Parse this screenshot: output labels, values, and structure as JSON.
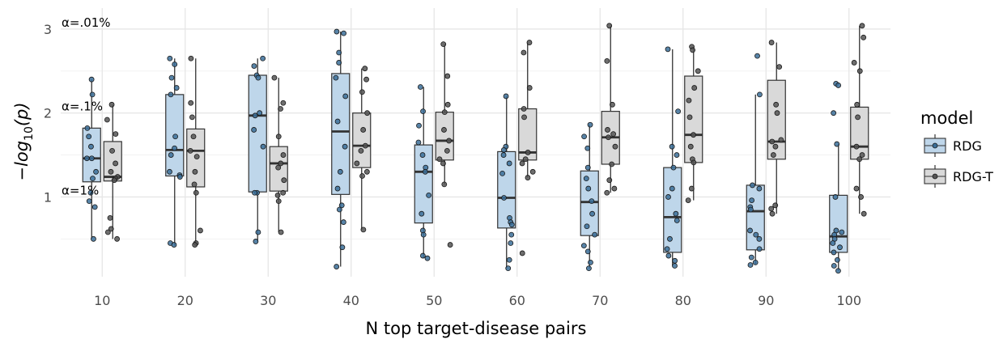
{
  "chart_data": {
    "type": "boxplot",
    "xlabel": "N top target-disease pairs",
    "ylabel_main": "−log",
    "ylabel_sub": "10",
    "ylabel_tail": "(p)",
    "categories": [
      "10",
      "20",
      "30",
      "40",
      "50",
      "60",
      "70",
      "80",
      "90",
      "100"
    ],
    "yticks": [
      1,
      2,
      3
    ],
    "ylim": [
      0.05,
      3.25
    ],
    "grid": true,
    "annotations": [
      {
        "text": "α=.01%",
        "y": 3.0
      },
      {
        "text": "α=.1%",
        "y": 2.0
      },
      {
        "text": "α=1%",
        "y": 1.0
      }
    ],
    "legend": {
      "title": "model",
      "position": "right"
    },
    "series": [
      {
        "name": "RDG",
        "color": "#bed6ea",
        "point_color": "#3b6f99",
        "boxes": [
          {
            "q1": 1.18,
            "median": 1.46,
            "q3": 1.82,
            "whislo": 0.5,
            "whishi": 2.4
          },
          {
            "q1": 1.25,
            "median": 1.56,
            "q3": 2.22,
            "whislo": 0.42,
            "whishi": 2.65
          },
          {
            "q1": 1.06,
            "median": 1.97,
            "q3": 2.45,
            "whislo": 0.47,
            "whishi": 2.65
          },
          {
            "q1": 1.03,
            "median": 1.78,
            "q3": 2.47,
            "whislo": 0.17,
            "whishi": 2.97
          },
          {
            "q1": 0.69,
            "median": 1.3,
            "q3": 1.62,
            "whislo": 0.27,
            "whishi": 2.31
          },
          {
            "q1": 0.63,
            "median": 0.99,
            "q3": 1.54,
            "whislo": 0.15,
            "whishi": 2.2
          },
          {
            "q1": 0.54,
            "median": 0.94,
            "q3": 1.31,
            "whislo": 0.15,
            "whishi": 1.86
          },
          {
            "q1": 0.34,
            "median": 0.76,
            "q3": 1.35,
            "whislo": 0.18,
            "whishi": 2.76
          },
          {
            "q1": 0.37,
            "median": 0.83,
            "q3": 1.14,
            "whislo": 0.19,
            "whishi": 2.22
          },
          {
            "q1": 0.34,
            "median": 0.53,
            "q3": 1.02,
            "whislo": 0.12,
            "whishi": 1.63
          }
        ],
        "points": [
          [
            2.4,
            2.22,
            1.82,
            1.72,
            1.6,
            1.46,
            1.46,
            1.3,
            1.22,
            1.05,
            0.95,
            0.88,
            0.5
          ],
          [
            2.65,
            2.58,
            2.42,
            2.3,
            2.22,
            1.72,
            1.58,
            1.5,
            1.3,
            1.26,
            1.24,
            0.45,
            0.43
          ],
          [
            2.65,
            2.56,
            2.45,
            2.42,
            2.0,
            1.97,
            1.8,
            1.6,
            1.05,
            1.05,
            0.58,
            0.47
          ],
          [
            2.97,
            2.95,
            2.72,
            2.6,
            2.42,
            2.2,
            1.9,
            1.6,
            1.3,
            1.1,
            0.9,
            0.85,
            0.7,
            0.4,
            0.17
          ],
          [
            2.31,
            2.02,
            1.85,
            1.65,
            1.5,
            1.35,
            1.3,
            1.02,
            0.8,
            0.6,
            0.55,
            0.3,
            0.27
          ],
          [
            2.2,
            1.6,
            1.56,
            1.5,
            1.4,
            1.28,
            0.99,
            0.75,
            0.7,
            0.67,
            0.55,
            0.45,
            0.25,
            0.15
          ],
          [
            1.86,
            1.72,
            1.58,
            1.35,
            1.22,
            1.1,
            0.95,
            0.8,
            0.65,
            0.55,
            0.42,
            0.35,
            0.22,
            0.15
          ],
          [
            2.76,
            2.02,
            1.6,
            1.5,
            1.35,
            1.1,
            1.0,
            0.8,
            0.72,
            0.5,
            0.38,
            0.3,
            0.24,
            0.18
          ],
          [
            2.68,
            2.22,
            1.14,
            1.1,
            0.96,
            0.88,
            0.85,
            0.6,
            0.55,
            0.5,
            0.38,
            0.28,
            0.22,
            0.19
          ],
          [
            2.35,
            2.33,
            2.0,
            1.63,
            1.0,
            0.6,
            0.58,
            0.55,
            0.5,
            0.45,
            0.4,
            0.34,
            0.25,
            0.18,
            0.12
          ]
        ]
      },
      {
        "name": "RDG-T",
        "color": "#d9d9d9",
        "point_color": "#555555",
        "boxes": [
          {
            "q1": 1.19,
            "median": 1.24,
            "q3": 1.66,
            "whislo": 0.5,
            "whishi": 2.1
          },
          {
            "q1": 1.12,
            "median": 1.55,
            "q3": 1.81,
            "whislo": 0.43,
            "whishi": 2.65
          },
          {
            "q1": 1.07,
            "median": 1.4,
            "q3": 1.6,
            "whislo": 0.58,
            "whishi": 2.42
          },
          {
            "q1": 1.35,
            "median": 1.61,
            "q3": 2.0,
            "whislo": 0.61,
            "whishi": 2.53
          },
          {
            "q1": 1.44,
            "median": 1.67,
            "q3": 2.01,
            "whislo": 1.15,
            "whishi": 2.82
          },
          {
            "q1": 1.44,
            "median": 1.53,
            "q3": 2.05,
            "whislo": 1.23,
            "whishi": 2.84
          },
          {
            "q1": 1.39,
            "median": 1.71,
            "q3": 2.02,
            "whislo": 1.05,
            "whishi": 3.04
          },
          {
            "q1": 1.41,
            "median": 1.74,
            "q3": 2.44,
            "whislo": 0.96,
            "whishi": 2.79
          },
          {
            "q1": 1.45,
            "median": 1.66,
            "q3": 2.39,
            "whislo": 0.8,
            "whishi": 2.84
          },
          {
            "q1": 1.45,
            "median": 1.6,
            "q3": 2.07,
            "whislo": 0.8,
            "whishi": 3.04
          }
        ],
        "points": [
          [
            2.1,
            1.92,
            1.75,
            1.55,
            1.4,
            1.3,
            1.24,
            1.22,
            1.2,
            0.75,
            0.62,
            0.58,
            0.5
          ],
          [
            2.65,
            2.12,
            1.95,
            1.72,
            1.55,
            1.48,
            1.3,
            1.15,
            1.05,
            0.6,
            0.45,
            0.43
          ],
          [
            2.42,
            2.12,
            2.05,
            1.72,
            1.5,
            1.4,
            1.35,
            1.2,
            1.05,
            1.02,
            0.95,
            0.58
          ],
          [
            2.53,
            2.4,
            2.25,
            2.0,
            1.8,
            1.61,
            1.55,
            1.4,
            1.3,
            1.25,
            0.61
          ],
          [
            2.82,
            2.44,
            2.1,
            2.01,
            1.8,
            1.67,
            1.55,
            1.45,
            1.4,
            1.15,
            0.43
          ],
          [
            2.84,
            2.72,
            2.3,
            2.05,
            1.95,
            1.53,
            1.45,
            1.4,
            1.3,
            1.23,
            0.33
          ],
          [
            3.04,
            2.62,
            2.1,
            1.8,
            1.75,
            1.71,
            1.6,
            1.39,
            1.2,
            1.1,
            1.05
          ],
          [
            2.79,
            2.75,
            2.5,
            2.3,
            2.15,
            1.95,
            1.74,
            1.6,
            1.45,
            1.41,
            1.1,
            0.96
          ],
          [
            2.84,
            2.55,
            2.1,
            2.0,
            1.68,
            1.66,
            1.6,
            1.5,
            0.9,
            0.86,
            0.8
          ],
          [
            3.04,
            2.9,
            2.6,
            2.5,
            2.1,
            1.95,
            1.6,
            1.5,
            1.45,
            1.1,
            1.0,
            0.8
          ]
        ]
      }
    ]
  }
}
